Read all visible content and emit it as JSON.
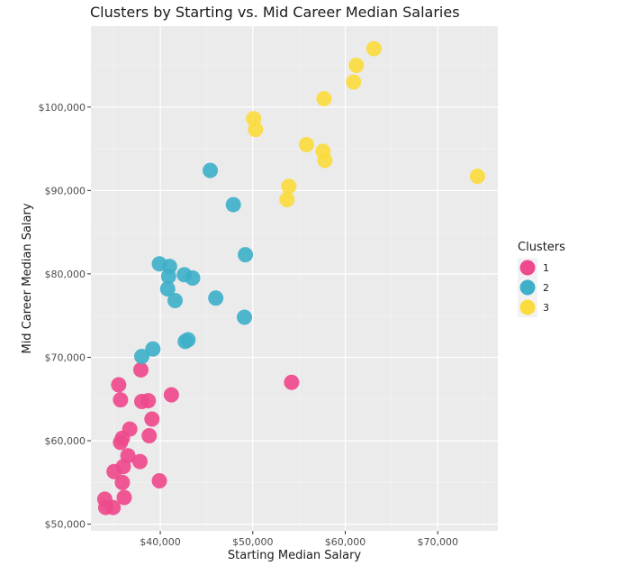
{
  "chart_data": {
    "type": "scatter",
    "title": "Clusters by Starting vs. Mid Career Median Salaries",
    "xlabel": "Starting Median Salary",
    "ylabel": "Mid Career Median Salary",
    "xlim": [
      32500,
      76500
    ],
    "ylim": [
      49200,
      109700
    ],
    "x_ticks": [
      40000,
      50000,
      60000,
      70000
    ],
    "x_tick_labels": [
      "$40,000",
      "$50,000",
      "$60,000",
      "$70,000"
    ],
    "y_ticks": [
      50000,
      60000,
      70000,
      80000,
      90000,
      100000
    ],
    "y_tick_labels": [
      "$50,000",
      "$60,000",
      "$70,000",
      "$80,000",
      "$90,000",
      "$100,000"
    ],
    "grid": true,
    "panel_background": "#ebebeb",
    "legend": {
      "title": "Clusters",
      "position": "right"
    },
    "series": [
      {
        "name": "1",
        "color": "#ee4a8c",
        "points": [
          [
            34000,
            53000
          ],
          [
            34100,
            52000
          ],
          [
            34900,
            52000
          ],
          [
            35000,
            56300
          ],
          [
            35500,
            66700
          ],
          [
            35700,
            59800
          ],
          [
            35700,
            64900
          ],
          [
            35900,
            60300
          ],
          [
            35900,
            55000
          ],
          [
            36000,
            56900
          ],
          [
            36100,
            53200
          ],
          [
            36500,
            58200
          ],
          [
            36700,
            61400
          ],
          [
            37800,
            57500
          ],
          [
            37900,
            68500
          ],
          [
            38000,
            64700
          ],
          [
            38700,
            64800
          ],
          [
            38800,
            60600
          ],
          [
            39100,
            62600
          ],
          [
            39900,
            55200
          ],
          [
            41200,
            65500
          ],
          [
            54200,
            67000
          ]
        ]
      },
      {
        "name": "2",
        "color": "#3fb0c9",
        "points": [
          [
            38000,
            70100
          ],
          [
            39200,
            71000
          ],
          [
            39900,
            81200
          ],
          [
            40800,
            78200
          ],
          [
            40900,
            79700
          ],
          [
            41000,
            80900
          ],
          [
            41600,
            76800
          ],
          [
            42600,
            79900
          ],
          [
            42700,
            71900
          ],
          [
            43000,
            72100
          ],
          [
            43500,
            79500
          ],
          [
            45400,
            92400
          ],
          [
            46000,
            77100
          ],
          [
            47900,
            88300
          ],
          [
            49100,
            74800
          ],
          [
            49200,
            82300
          ]
        ]
      },
      {
        "name": "3",
        "color": "#fbdb3e",
        "points": [
          [
            50100,
            98600
          ],
          [
            50300,
            97300
          ],
          [
            53700,
            88900
          ],
          [
            53900,
            90500
          ],
          [
            55800,
            95500
          ],
          [
            57600,
            94700
          ],
          [
            57700,
            101000
          ],
          [
            57800,
            93600
          ],
          [
            60900,
            103000
          ],
          [
            61200,
            105000
          ],
          [
            63100,
            107000
          ],
          [
            74300,
            91700
          ]
        ]
      }
    ]
  }
}
